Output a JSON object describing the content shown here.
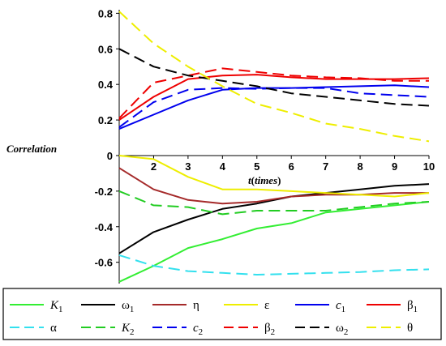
{
  "chart_data": {
    "type": "line",
    "xlabel": "t(times)",
    "xlabel_parts": [
      "t",
      "(",
      "times",
      ")"
    ],
    "ylabel": "Correlation",
    "xlim": [
      1,
      10
    ],
    "ylim": [
      -0.72,
      0.82
    ],
    "x_ticks": [
      2,
      3,
      4,
      5,
      6,
      7,
      8,
      9,
      10
    ],
    "x_tick_labels": [
      "2",
      "3",
      "4",
      "5",
      "6",
      "7",
      "8",
      "9",
      "10"
    ],
    "y_ticks": [
      -0.6,
      -0.4,
      -0.2,
      0,
      0.2,
      0.4,
      0.6,
      0.8
    ],
    "y_tick_labels": [
      "-0.6",
      "-0.4",
      "-0.2",
      "0",
      "0.2",
      "0.4",
      "0.6",
      "0.8"
    ],
    "legend_position": "bottom",
    "x": [
      1,
      2,
      3,
      4,
      5,
      6,
      7,
      8,
      9,
      10
    ],
    "series": [
      {
        "name": "K",
        "sub": "1",
        "italic": true,
        "color": "#33ee33",
        "dash": "solid",
        "values": [
          -0.71,
          -0.62,
          -0.52,
          -0.47,
          -0.41,
          -0.38,
          -0.32,
          -0.3,
          -0.28,
          -0.26
        ]
      },
      {
        "name": "ω",
        "sub": "1",
        "italic": false,
        "color": "#000000",
        "dash": "solid",
        "values": [
          -0.55,
          -0.43,
          -0.36,
          -0.3,
          -0.27,
          -0.23,
          -0.21,
          -0.19,
          -0.17,
          -0.16
        ]
      },
      {
        "name": "η",
        "sub": "",
        "italic": false,
        "color": "#a52a2a",
        "dash": "solid",
        "values": [
          -0.07,
          -0.19,
          -0.25,
          -0.27,
          -0.26,
          -0.23,
          -0.22,
          -0.22,
          -0.21,
          -0.21
        ]
      },
      {
        "name": "ε",
        "sub": "",
        "italic": false,
        "color": "#eeee00",
        "dash": "solid",
        "values": [
          0.0,
          -0.02,
          -0.12,
          -0.19,
          -0.19,
          -0.2,
          -0.21,
          -0.22,
          -0.23,
          -0.21
        ]
      },
      {
        "name": "c",
        "sub": "1",
        "italic": true,
        "color": "#0000ee",
        "dash": "solid",
        "values": [
          0.15,
          0.23,
          0.31,
          0.37,
          0.38,
          0.38,
          0.385,
          0.39,
          0.395,
          0.385
        ]
      },
      {
        "name": "β",
        "sub": "1",
        "italic": false,
        "color": "#ee0000",
        "dash": "solid",
        "values": [
          0.2,
          0.33,
          0.43,
          0.45,
          0.455,
          0.44,
          0.43,
          0.43,
          0.43,
          0.435
        ]
      },
      {
        "name": "α",
        "sub": "",
        "italic": false,
        "color": "#33e0ee",
        "dash": "dashed",
        "values": [
          -0.56,
          -0.62,
          -0.65,
          -0.66,
          -0.67,
          -0.665,
          -0.66,
          -0.655,
          -0.645,
          -0.64
        ]
      },
      {
        "name": "K",
        "sub": "2",
        "italic": true,
        "color": "#22cc22",
        "dash": "dashed",
        "values": [
          -0.2,
          -0.28,
          -0.29,
          -0.33,
          -0.31,
          -0.31,
          -0.31,
          -0.29,
          -0.27,
          -0.26
        ]
      },
      {
        "name": "c",
        "sub": "2",
        "italic": true,
        "color": "#0000ee",
        "dash": "dashed",
        "values": [
          0.16,
          0.3,
          0.37,
          0.38,
          0.375,
          0.38,
          0.38,
          0.35,
          0.34,
          0.33
        ]
      },
      {
        "name": "β",
        "sub": "2",
        "italic": false,
        "color": "#ee0000",
        "dash": "dashed",
        "values": [
          0.21,
          0.41,
          0.45,
          0.49,
          0.47,
          0.45,
          0.44,
          0.435,
          0.42,
          0.42
        ]
      },
      {
        "name": "ω",
        "sub": "2",
        "italic": false,
        "color": "#000000",
        "dash": "dashed",
        "values": [
          0.6,
          0.5,
          0.45,
          0.42,
          0.39,
          0.35,
          0.33,
          0.31,
          0.29,
          0.28
        ]
      },
      {
        "name": "θ",
        "sub": "",
        "italic": false,
        "color": "#eeee00",
        "dash": "dashed",
        "values": [
          0.81,
          0.63,
          0.5,
          0.39,
          0.29,
          0.24,
          0.18,
          0.15,
          0.11,
          0.08
        ]
      }
    ]
  }
}
